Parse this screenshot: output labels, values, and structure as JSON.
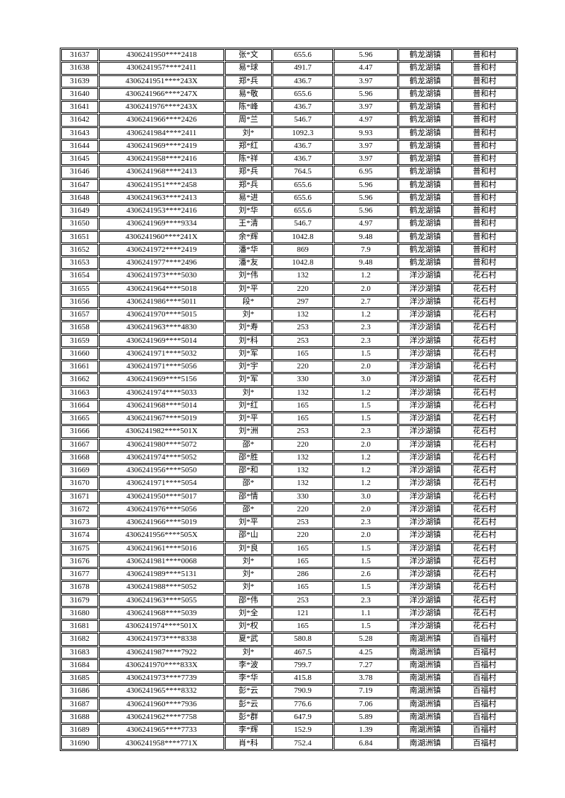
{
  "page": {
    "background_color": "#ffffff",
    "text_color": "#000000",
    "border_color": "#000000"
  },
  "table": {
    "column_roles": [
      "row-number",
      "masked-id-number",
      "masked-name",
      "value-1",
      "value-2",
      "town",
      "village"
    ],
    "rows": [
      [
        "31637",
        "4306241950****2418",
        "张*文",
        "655.6",
        "5.96",
        "鹤龙湖镇",
        "普和村"
      ],
      [
        "31638",
        "4306241957****2411",
        "易*球",
        "491.7",
        "4.47",
        "鹤龙湖镇",
        "普和村"
      ],
      [
        "31639",
        "4306241951****243X",
        "郑*兵",
        "436.7",
        "3.97",
        "鹤龙湖镇",
        "普和村"
      ],
      [
        "31640",
        "4306241966****247X",
        "易*敬",
        "655.6",
        "5.96",
        "鹤龙湖镇",
        "普和村"
      ],
      [
        "31641",
        "4306241976****243X",
        "陈*峰",
        "436.7",
        "3.97",
        "鹤龙湖镇",
        "普和村"
      ],
      [
        "31642",
        "4306241966****2426",
        "周*兰",
        "546.7",
        "4.97",
        "鹤龙湖镇",
        "普和村"
      ],
      [
        "31643",
        "4306241984****2411",
        "刘*",
        "1092.3",
        "9.93",
        "鹤龙湖镇",
        "普和村"
      ],
      [
        "31644",
        "4306241969****2419",
        "郑*红",
        "436.7",
        "3.97",
        "鹤龙湖镇",
        "普和村"
      ],
      [
        "31645",
        "4306241958****2416",
        "陈*祥",
        "436.7",
        "3.97",
        "鹤龙湖镇",
        "普和村"
      ],
      [
        "31646",
        "4306241968****2413",
        "郑*兵",
        "764.5",
        "6.95",
        "鹤龙湖镇",
        "普和村"
      ],
      [
        "31647",
        "4306241951****2458",
        "郑*兵",
        "655.6",
        "5.96",
        "鹤龙湖镇",
        "普和村"
      ],
      [
        "31648",
        "4306241963****2413",
        "易*进",
        "655.6",
        "5.96",
        "鹤龙湖镇",
        "普和村"
      ],
      [
        "31649",
        "4306241953****2416",
        "刘*华",
        "655.6",
        "5.96",
        "鹤龙湖镇",
        "普和村"
      ],
      [
        "31650",
        "4306241969****9334",
        "王*清",
        "546.7",
        "4.97",
        "鹤龙湖镇",
        "普和村"
      ],
      [
        "31651",
        "4306241960****241X",
        "余*辉",
        "1042.8",
        "9.48",
        "鹤龙湖镇",
        "普和村"
      ],
      [
        "31652",
        "4306241972****2419",
        "潘*华",
        "869",
        "7.9",
        "鹤龙湖镇",
        "普和村"
      ],
      [
        "31653",
        "4306241977****2496",
        "潘*友",
        "1042.8",
        "9.48",
        "鹤龙湖镇",
        "普和村"
      ],
      [
        "31654",
        "4306241973****5030",
        "刘*伟",
        "132",
        "1.2",
        "洋沙湖镇",
        "花石村"
      ],
      [
        "31655",
        "4306241964****5018",
        "刘*平",
        "220",
        "2.0",
        "洋沙湖镇",
        "花石村"
      ],
      [
        "31656",
        "4306241986****5011",
        "段*",
        "297",
        "2.7",
        "洋沙湖镇",
        "花石村"
      ],
      [
        "31657",
        "4306241970****5015",
        "刘*",
        "132",
        "1.2",
        "洋沙湖镇",
        "花石村"
      ],
      [
        "31658",
        "4306241963****4830",
        "刘*寿",
        "253",
        "2.3",
        "洋沙湖镇",
        "花石村"
      ],
      [
        "31659",
        "4306241969****5014",
        "刘*科",
        "253",
        "2.3",
        "洋沙湖镇",
        "花石村"
      ],
      [
        "31660",
        "4306241971****5032",
        "刘*军",
        "165",
        "1.5",
        "洋沙湖镇",
        "花石村"
      ],
      [
        "31661",
        "4306241971****5056",
        "刘*宇",
        "220",
        "2.0",
        "洋沙湖镇",
        "花石村"
      ],
      [
        "31662",
        "4306241969****5156",
        "刘*军",
        "330",
        "3.0",
        "洋沙湖镇",
        "花石村"
      ],
      [
        "31663",
        "4306241974****5033",
        "刘*",
        "132",
        "1.2",
        "洋沙湖镇",
        "花石村"
      ],
      [
        "31664",
        "4306241968****5014",
        "刘*红",
        "165",
        "1.5",
        "洋沙湖镇",
        "花石村"
      ],
      [
        "31665",
        "4306241967****5019",
        "刘*平",
        "165",
        "1.5",
        "洋沙湖镇",
        "花石村"
      ],
      [
        "31666",
        "4306241982****501X",
        "刘*洲",
        "253",
        "2.3",
        "洋沙湖镇",
        "花石村"
      ],
      [
        "31667",
        "4306241980****5072",
        "邵*",
        "220",
        "2.0",
        "洋沙湖镇",
        "花石村"
      ],
      [
        "31668",
        "4306241974****5052",
        "邵*胜",
        "132",
        "1.2",
        "洋沙湖镇",
        "花石村"
      ],
      [
        "31669",
        "4306241956****5050",
        "邵*和",
        "132",
        "1.2",
        "洋沙湖镇",
        "花石村"
      ],
      [
        "31670",
        "4306241971****5054",
        "邵*",
        "132",
        "1.2",
        "洋沙湖镇",
        "花石村"
      ],
      [
        "31671",
        "4306241950****5017",
        "邵*情",
        "330",
        "3.0",
        "洋沙湖镇",
        "花石村"
      ],
      [
        "31672",
        "4306241976****5056",
        "邵*",
        "220",
        "2.0",
        "洋沙湖镇",
        "花石村"
      ],
      [
        "31673",
        "4306241966****5019",
        "刘*平",
        "253",
        "2.3",
        "洋沙湖镇",
        "花石村"
      ],
      [
        "31674",
        "4306241956****505X",
        "邵*山",
        "220",
        "2.0",
        "洋沙湖镇",
        "花石村"
      ],
      [
        "31675",
        "4306241961****5016",
        "刘*良",
        "165",
        "1.5",
        "洋沙湖镇",
        "花石村"
      ],
      [
        "31676",
        "4306241981****0068",
        "刘*",
        "165",
        "1.5",
        "洋沙湖镇",
        "花石村"
      ],
      [
        "31677",
        "4306241989****5131",
        "刘*",
        "286",
        "2.6",
        "洋沙湖镇",
        "花石村"
      ],
      [
        "31678",
        "4306241988****5052",
        "刘*",
        "165",
        "1.5",
        "洋沙湖镇",
        "花石村"
      ],
      [
        "31679",
        "4306241963****5055",
        "邵*伟",
        "253",
        "2.3",
        "洋沙湖镇",
        "花石村"
      ],
      [
        "31680",
        "4306241968****5039",
        "刘*全",
        "121",
        "1.1",
        "洋沙湖镇",
        "花石村"
      ],
      [
        "31681",
        "4306241974****501X",
        "刘*权",
        "165",
        "1.5",
        "洋沙湖镇",
        "花石村"
      ],
      [
        "31682",
        "4306241973****8338",
        "夏*武",
        "580.8",
        "5.28",
        "南湖洲镇",
        "百福村"
      ],
      [
        "31683",
        "4306241987****7922",
        "刘*",
        "467.5",
        "4.25",
        "南湖洲镇",
        "百福村"
      ],
      [
        "31684",
        "4306241970****833X",
        "李*波",
        "799.7",
        "7.27",
        "南湖洲镇",
        "百福村"
      ],
      [
        "31685",
        "4306241973****7739",
        "李*华",
        "415.8",
        "3.78",
        "南湖洲镇",
        "百福村"
      ],
      [
        "31686",
        "4306241965****8332",
        "彭*云",
        "790.9",
        "7.19",
        "南湖洲镇",
        "百福村"
      ],
      [
        "31687",
        "4306241960****7936",
        "彭*云",
        "776.6",
        "7.06",
        "南湖洲镇",
        "百福村"
      ],
      [
        "31688",
        "4306241962****7758",
        "彭*群",
        "647.9",
        "5.89",
        "南湖洲镇",
        "百福村"
      ],
      [
        "31689",
        "4306241965****7733",
        "李*辉",
        "152.9",
        "1.39",
        "南湖洲镇",
        "百福村"
      ],
      [
        "31690",
        "4306241958****771X",
        "肖*科",
        "752.4",
        "6.84",
        "南湖洲镇",
        "百福村"
      ]
    ]
  }
}
